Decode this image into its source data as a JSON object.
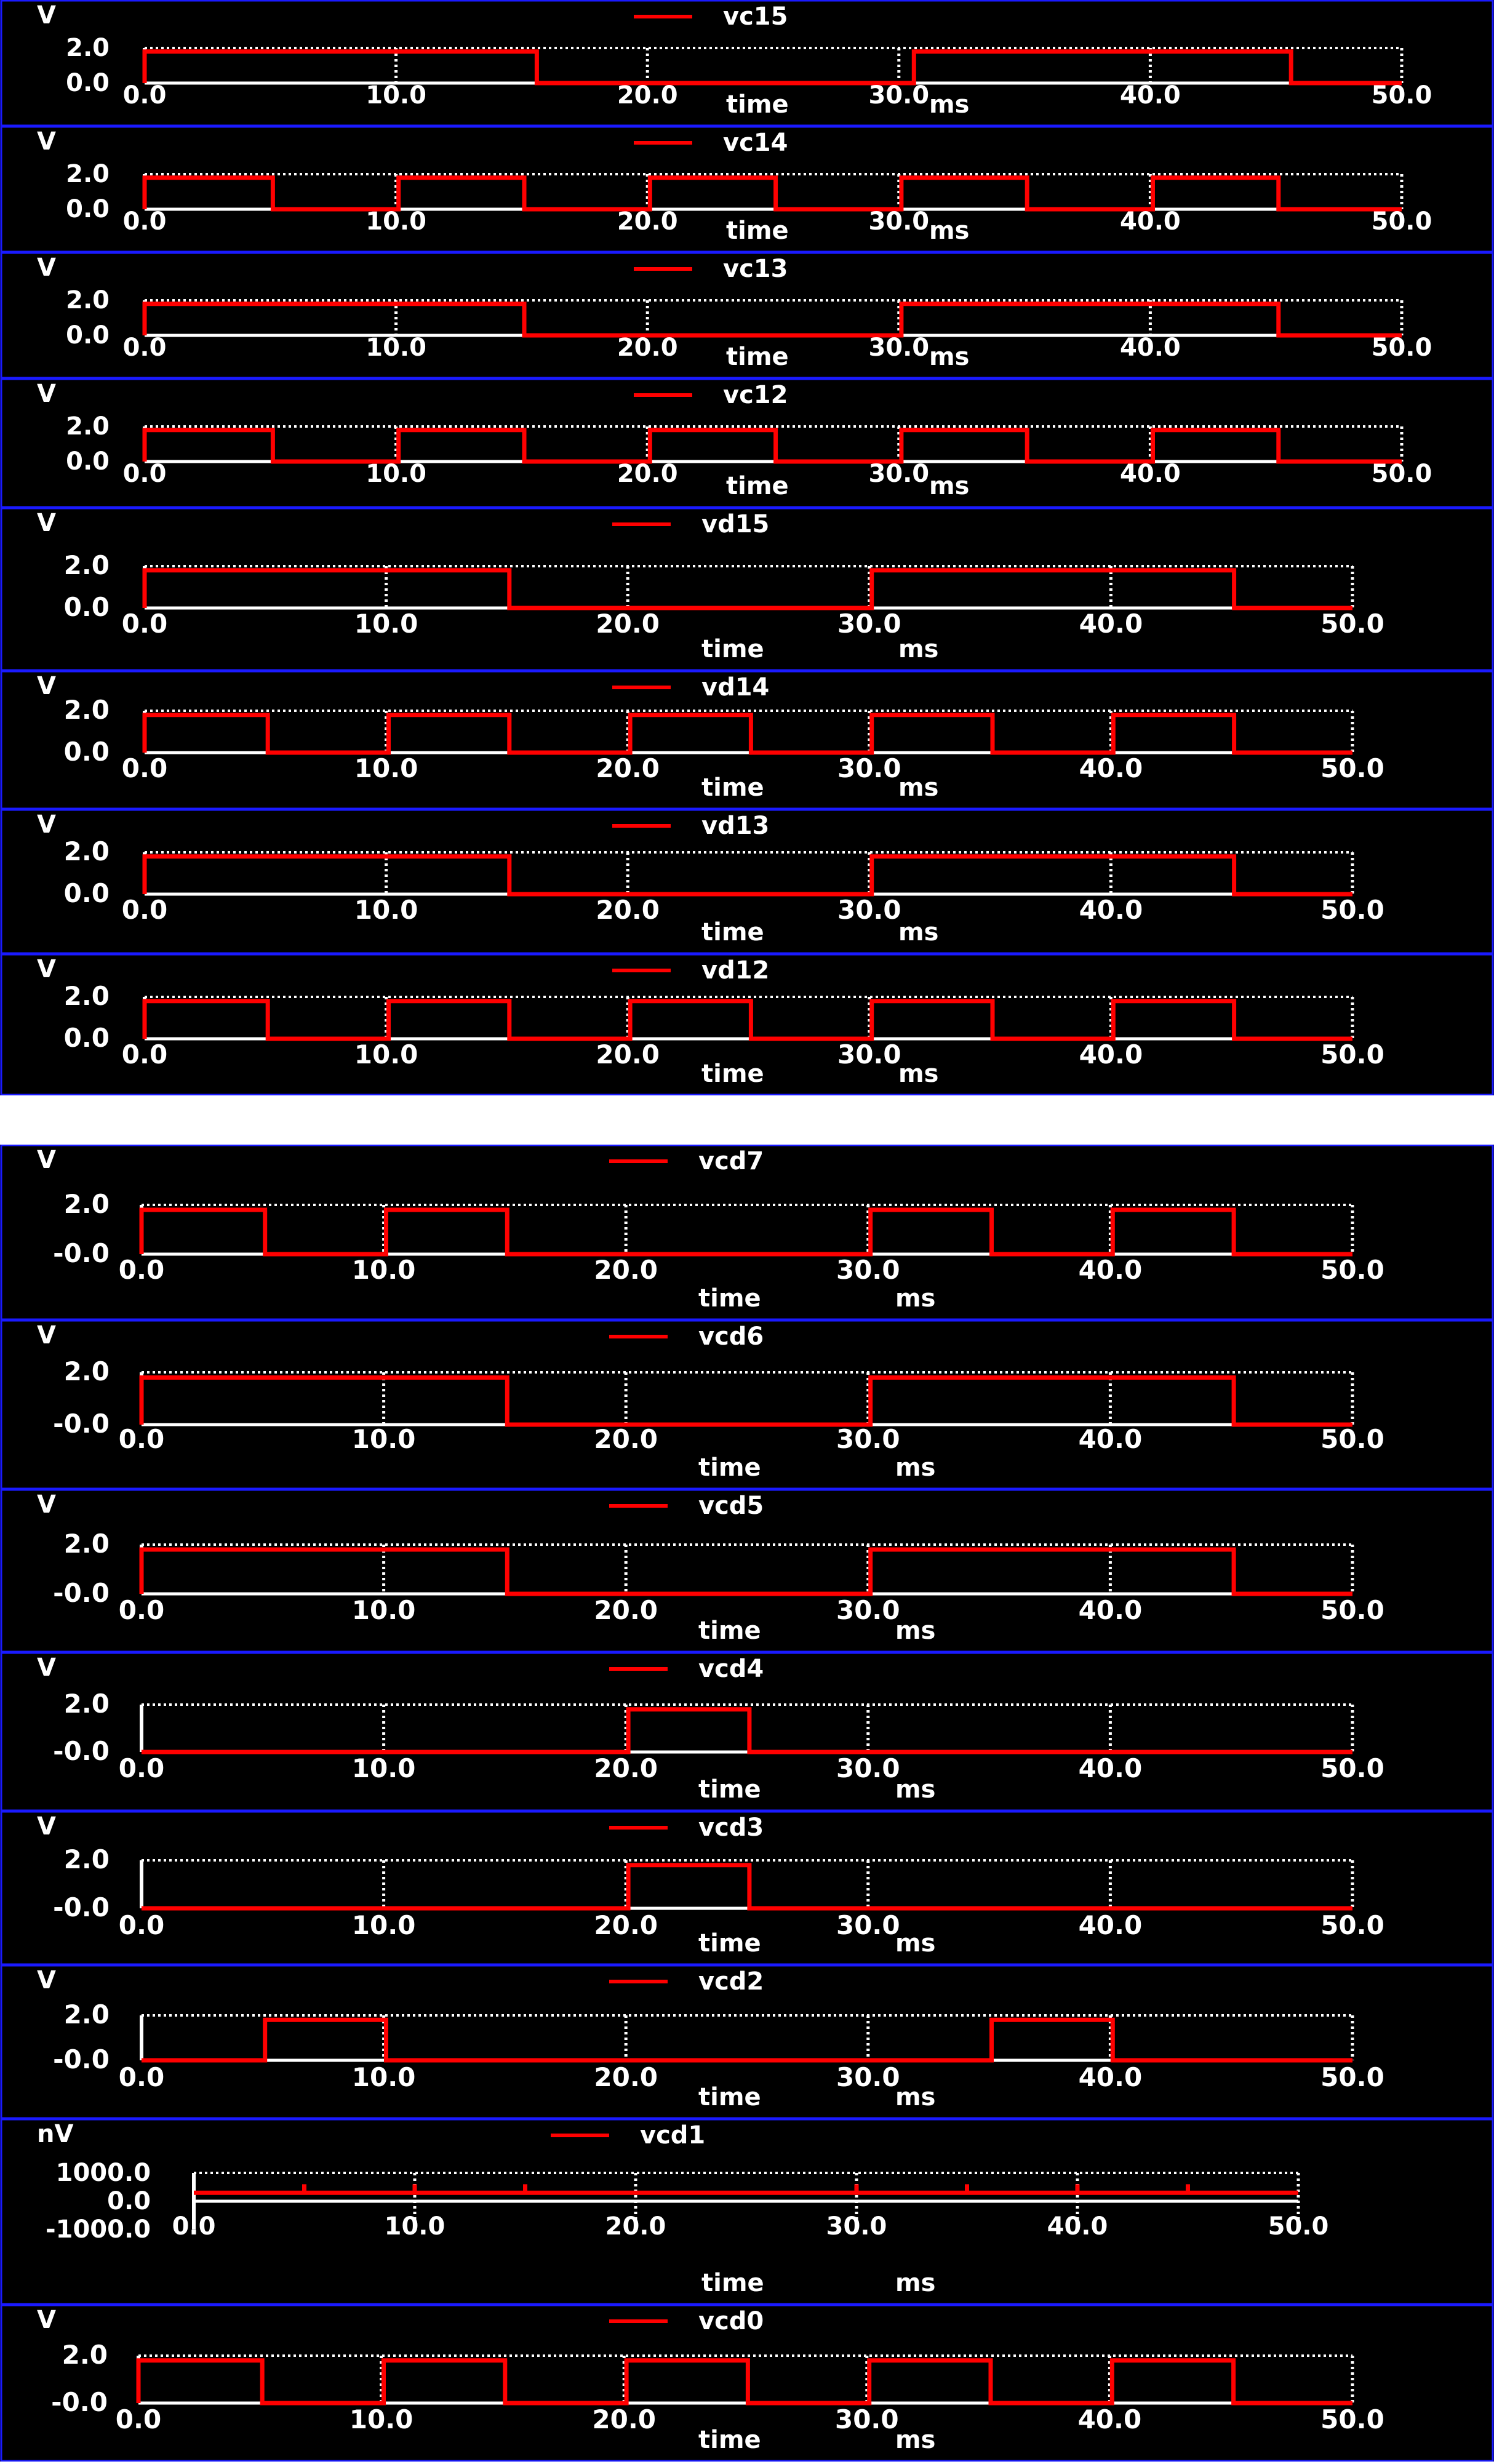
{
  "chart_data": [
    {
      "type": "line",
      "title": "vc15",
      "ylabel": "V",
      "xlabel": "time",
      "x_unit": "ms",
      "ytick_labels": [
        "2.0",
        "0.0"
      ],
      "xtick_labels": [
        "0.0",
        "10.0",
        "20.0",
        "30.0",
        "40.0",
        "50.0"
      ],
      "xlim": [
        0,
        50
      ],
      "ylim": [
        0,
        2
      ],
      "series": [
        {
          "name": "vc15",
          "x": [
            0,
            0,
            15.6,
            15.6,
            30.6,
            30.6,
            45.6,
            45.6,
            50
          ],
          "y": [
            0,
            1.8,
            1.8,
            0,
            0,
            1.8,
            1.8,
            0,
            0
          ]
        }
      ]
    },
    {
      "type": "line",
      "title": "vc14",
      "ylabel": "V",
      "xlabel": "time",
      "x_unit": "ms",
      "ytick_labels": [
        "2.0",
        "0.0"
      ],
      "xtick_labels": [
        "0.0",
        "10.0",
        "20.0",
        "30.0",
        "40.0",
        "50.0"
      ],
      "xlim": [
        0,
        50
      ],
      "ylim": [
        0,
        2
      ],
      "series": [
        {
          "name": "vc14",
          "x": [
            0,
            0,
            5.1,
            5.1,
            10.1,
            10.1,
            15.1,
            15.1,
            20.1,
            20.1,
            25.1,
            25.1,
            30.1,
            30.1,
            35.1,
            35.1,
            40.1,
            40.1,
            45.1,
            45.1,
            50
          ],
          "y": [
            0,
            1.8,
            1.8,
            0,
            0,
            1.8,
            1.8,
            0,
            0,
            1.8,
            1.8,
            0,
            0,
            1.8,
            1.8,
            0,
            0,
            1.8,
            1.8,
            0,
            0
          ]
        }
      ]
    },
    {
      "type": "line",
      "title": "vc13",
      "ylabel": "V",
      "xlabel": "time",
      "x_unit": "ms",
      "ytick_labels": [
        "2.0",
        "0.0"
      ],
      "xtick_labels": [
        "0.0",
        "10.0",
        "20.0",
        "30.0",
        "40.0",
        "50.0"
      ],
      "xlim": [
        0,
        50
      ],
      "ylim": [
        0,
        2
      ],
      "series": [
        {
          "name": "vc13",
          "x": [
            0,
            0,
            15.1,
            15.1,
            30.1,
            30.1,
            45.1,
            45.1,
            50
          ],
          "y": [
            0,
            1.8,
            1.8,
            0,
            0,
            1.8,
            1.8,
            0,
            0
          ]
        }
      ]
    },
    {
      "type": "line",
      "title": "vc12",
      "ylabel": "V",
      "xlabel": "time",
      "x_unit": "ms",
      "ytick_labels": [
        "2.0",
        "0.0"
      ],
      "xtick_labels": [
        "0.0",
        "10.0",
        "20.0",
        "30.0",
        "40.0",
        "50.0"
      ],
      "xlim": [
        0,
        50
      ],
      "ylim": [
        0,
        2
      ],
      "series": [
        {
          "name": "vc12",
          "x": [
            0,
            0,
            5.1,
            5.1,
            10.1,
            10.1,
            15.1,
            15.1,
            20.1,
            20.1,
            25.1,
            25.1,
            30.1,
            30.1,
            35.1,
            35.1,
            40.1,
            40.1,
            45.1,
            45.1,
            50
          ],
          "y": [
            0,
            1.8,
            1.8,
            0,
            0,
            1.8,
            1.8,
            0,
            0,
            1.8,
            1.8,
            0,
            0,
            1.8,
            1.8,
            0,
            0,
            1.8,
            1.8,
            0,
            0
          ]
        }
      ]
    },
    {
      "type": "line",
      "title": "vd15",
      "ylabel": "V",
      "xlabel": "time",
      "x_unit": "ms",
      "ytick_labels": [
        "2.0",
        "0.0"
      ],
      "xtick_labels": [
        "0.0",
        "10.0",
        "20.0",
        "30.0",
        "40.0",
        "50.0"
      ],
      "xlim": [
        0,
        50
      ],
      "ylim": [
        0,
        2
      ],
      "series": [
        {
          "name": "vd15",
          "x": [
            0,
            0,
            15.1,
            15.1,
            30.1,
            30.1,
            45.1,
            45.1,
            50
          ],
          "y": [
            0,
            1.8,
            1.8,
            0,
            0,
            1.8,
            1.8,
            0,
            0
          ]
        }
      ]
    },
    {
      "type": "line",
      "title": "vd14",
      "ylabel": "V",
      "xlabel": "time",
      "x_unit": "ms",
      "ytick_labels": [
        "2.0",
        "0.0"
      ],
      "xtick_labels": [
        "0.0",
        "10.0",
        "20.0",
        "30.0",
        "40.0",
        "50.0"
      ],
      "xlim": [
        0,
        50
      ],
      "ylim": [
        0,
        2
      ],
      "series": [
        {
          "name": "vd14",
          "x": [
            0,
            0,
            5.1,
            5.1,
            10.1,
            10.1,
            15.1,
            15.1,
            20.1,
            20.1,
            25.1,
            25.1,
            30.1,
            30.1,
            35.1,
            35.1,
            40.1,
            40.1,
            45.1,
            45.1,
            50
          ],
          "y": [
            0,
            1.8,
            1.8,
            0,
            0,
            1.8,
            1.8,
            0,
            0,
            1.8,
            1.8,
            0,
            0,
            1.8,
            1.8,
            0,
            0,
            1.8,
            1.8,
            0,
            0
          ]
        }
      ]
    },
    {
      "type": "line",
      "title": "vd13",
      "ylabel": "V",
      "xlabel": "time",
      "x_unit": "ms",
      "ytick_labels": [
        "2.0",
        "0.0"
      ],
      "xtick_labels": [
        "0.0",
        "10.0",
        "20.0",
        "30.0",
        "40.0",
        "50.0"
      ],
      "xlim": [
        0,
        50
      ],
      "ylim": [
        0,
        2
      ],
      "series": [
        {
          "name": "vd13",
          "x": [
            0,
            0,
            15.1,
            15.1,
            30.1,
            30.1,
            45.1,
            45.1,
            50
          ],
          "y": [
            0,
            1.8,
            1.8,
            0,
            0,
            1.8,
            1.8,
            0,
            0
          ]
        }
      ]
    },
    {
      "type": "line",
      "title": "vd12",
      "ylabel": "V",
      "xlabel": "time",
      "x_unit": "ms",
      "ytick_labels": [
        "2.0",
        "0.0"
      ],
      "xtick_labels": [
        "0.0",
        "10.0",
        "20.0",
        "30.0",
        "40.0",
        "50.0"
      ],
      "xlim": [
        0,
        50
      ],
      "ylim": [
        0,
        2
      ],
      "series": [
        {
          "name": "vd12",
          "x": [
            0,
            0,
            5.1,
            5.1,
            10.1,
            10.1,
            15.1,
            15.1,
            20.1,
            20.1,
            25.1,
            25.1,
            30.1,
            30.1,
            35.1,
            35.1,
            40.1,
            40.1,
            45.1,
            45.1,
            50
          ],
          "y": [
            0,
            1.8,
            1.8,
            0,
            0,
            1.8,
            1.8,
            0,
            0,
            1.8,
            1.8,
            0,
            0,
            1.8,
            1.8,
            0,
            0,
            1.8,
            1.8,
            0,
            0
          ]
        }
      ]
    },
    {
      "type": "line",
      "title": "vcd7",
      "ylabel": "V",
      "xlabel": "time",
      "x_unit": "ms",
      "ytick_labels": [
        "2.0",
        "-0.0"
      ],
      "xtick_labels": [
        "0.0",
        "10.0",
        "20.0",
        "30.0",
        "40.0",
        "50.0"
      ],
      "xlim": [
        0,
        50
      ],
      "ylim": [
        0,
        2
      ],
      "series": [
        {
          "name": "vcd7",
          "x": [
            0,
            0,
            5.1,
            5.1,
            10.1,
            10.1,
            15.1,
            15.1,
            30.1,
            30.1,
            35.1,
            35.1,
            40.1,
            40.1,
            45.1,
            45.1,
            50
          ],
          "y": [
            0,
            1.8,
            1.8,
            0,
            0,
            1.8,
            1.8,
            0,
            0,
            1.8,
            1.8,
            0,
            0,
            1.8,
            1.8,
            0,
            0
          ]
        }
      ]
    },
    {
      "type": "line",
      "title": "vcd6",
      "ylabel": "V",
      "xlabel": "time",
      "x_unit": "ms",
      "ytick_labels": [
        "2.0",
        "-0.0"
      ],
      "xtick_labels": [
        "0.0",
        "10.0",
        "20.0",
        "30.0",
        "40.0",
        "50.0"
      ],
      "xlim": [
        0,
        50
      ],
      "ylim": [
        0,
        2
      ],
      "series": [
        {
          "name": "vcd6",
          "x": [
            0,
            0,
            15.1,
            15.1,
            30.1,
            30.1,
            45.1,
            45.1,
            50
          ],
          "y": [
            0,
            1.8,
            1.8,
            0,
            0,
            1.8,
            1.8,
            0,
            0
          ]
        }
      ]
    },
    {
      "type": "line",
      "title": "vcd5",
      "ylabel": "V",
      "xlabel": "time",
      "x_unit": "ms",
      "ytick_labels": [
        "2.0",
        "-0.0"
      ],
      "xtick_labels": [
        "0.0",
        "10.0",
        "20.0",
        "30.0",
        "40.0",
        "50.0"
      ],
      "xlim": [
        0,
        50
      ],
      "ylim": [
        0,
        2
      ],
      "series": [
        {
          "name": "vcd5",
          "x": [
            0,
            0,
            15.1,
            15.1,
            30.1,
            30.1,
            45.1,
            45.1,
            50
          ],
          "y": [
            0,
            1.8,
            1.8,
            0,
            0,
            1.8,
            1.8,
            0,
            0
          ]
        }
      ]
    },
    {
      "type": "line",
      "title": "vcd4",
      "ylabel": "V",
      "xlabel": "time",
      "x_unit": "ms",
      "ytick_labels": [
        "2.0",
        "-0.0"
      ],
      "xtick_labels": [
        "0.0",
        "10.0",
        "20.0",
        "30.0",
        "40.0",
        "50.0"
      ],
      "xlim": [
        0,
        50
      ],
      "ylim": [
        0,
        2
      ],
      "series": [
        {
          "name": "vcd4",
          "x": [
            0,
            20.1,
            20.1,
            25.1,
            25.1,
            50
          ],
          "y": [
            0,
            0,
            1.8,
            1.8,
            0,
            0
          ]
        }
      ]
    },
    {
      "type": "line",
      "title": "vcd3",
      "ylabel": "V",
      "xlabel": "time",
      "x_unit": "ms",
      "ytick_labels": [
        "2.0",
        "-0.0"
      ],
      "xtick_labels": [
        "0.0",
        "10.0",
        "20.0",
        "30.0",
        "40.0",
        "50.0"
      ],
      "xlim": [
        0,
        50
      ],
      "ylim": [
        0,
        2
      ],
      "series": [
        {
          "name": "vcd3",
          "x": [
            0,
            20.1,
            20.1,
            25.1,
            25.1,
            50
          ],
          "y": [
            0,
            0,
            1.8,
            1.8,
            0,
            0
          ]
        }
      ]
    },
    {
      "type": "line",
      "title": "vcd2",
      "ylabel": "V",
      "xlabel": "time",
      "x_unit": "ms",
      "ytick_labels": [
        "2.0",
        "-0.0"
      ],
      "xtick_labels": [
        "0.0",
        "10.0",
        "20.0",
        "30.0",
        "40.0",
        "50.0"
      ],
      "xlim": [
        0,
        50
      ],
      "ylim": [
        0,
        2
      ],
      "series": [
        {
          "name": "vcd2",
          "x": [
            0,
            5.1,
            5.1,
            10.1,
            10.1,
            35.1,
            35.1,
            40.1,
            40.1,
            50
          ],
          "y": [
            0,
            0,
            1.8,
            1.8,
            0,
            0,
            1.8,
            1.8,
            0,
            0
          ]
        }
      ]
    },
    {
      "type": "line",
      "title": "vcd1",
      "ylabel": "nV",
      "xlabel": "time",
      "x_unit": "ms",
      "ytick_labels": [
        "1000.0",
        "0.0",
        "-1000.0"
      ],
      "xtick_labels": [
        "0.0",
        "10.0",
        "20.0",
        "30.0",
        "40.0",
        "50.0"
      ],
      "xlim": [
        0,
        50
      ],
      "ylim": [
        -1000,
        1000
      ],
      "series": [
        {
          "name": "vcd1",
          "x": [
            0,
            5,
            5,
            5,
            10,
            10,
            10,
            15,
            15,
            15,
            30,
            30,
            30,
            35,
            35,
            35,
            40,
            40,
            40,
            45,
            45,
            45,
            50
          ],
          "y": [
            300,
            300,
            600,
            300,
            300,
            600,
            300,
            300,
            600,
            300,
            300,
            600,
            300,
            300,
            600,
            300,
            300,
            600,
            300,
            300,
            600,
            300,
            300
          ]
        }
      ]
    },
    {
      "type": "line",
      "title": "vcd0",
      "ylabel": "V",
      "xlabel": "time",
      "x_unit": "ms",
      "ytick_labels": [
        "2.0",
        "-0.0"
      ],
      "xtick_labels": [
        "0.0",
        "10.0",
        "20.0",
        "30.0",
        "40.0",
        "50.0"
      ],
      "xlim": [
        0,
        50
      ],
      "ylim": [
        0,
        2
      ],
      "series": [
        {
          "name": "vcd0",
          "x": [
            0,
            0,
            5.1,
            5.1,
            10.1,
            10.1,
            15.1,
            15.1,
            20.1,
            20.1,
            25.1,
            25.1,
            30.1,
            30.1,
            35.1,
            35.1,
            40.1,
            40.1,
            45.1,
            45.1,
            50
          ],
          "y": [
            0,
            1.8,
            1.8,
            0,
            0,
            1.8,
            1.8,
            0,
            0,
            1.8,
            1.8,
            0,
            0,
            1.8,
            1.8,
            0,
            0,
            1.8,
            1.8,
            0,
            0
          ]
        }
      ]
    }
  ],
  "colors": {
    "background": "#000000",
    "trace": "#ff0000",
    "axis": "#ffffff",
    "grid": "#ffffff",
    "frame": "#1a1aff",
    "gap": "#ffffff"
  }
}
